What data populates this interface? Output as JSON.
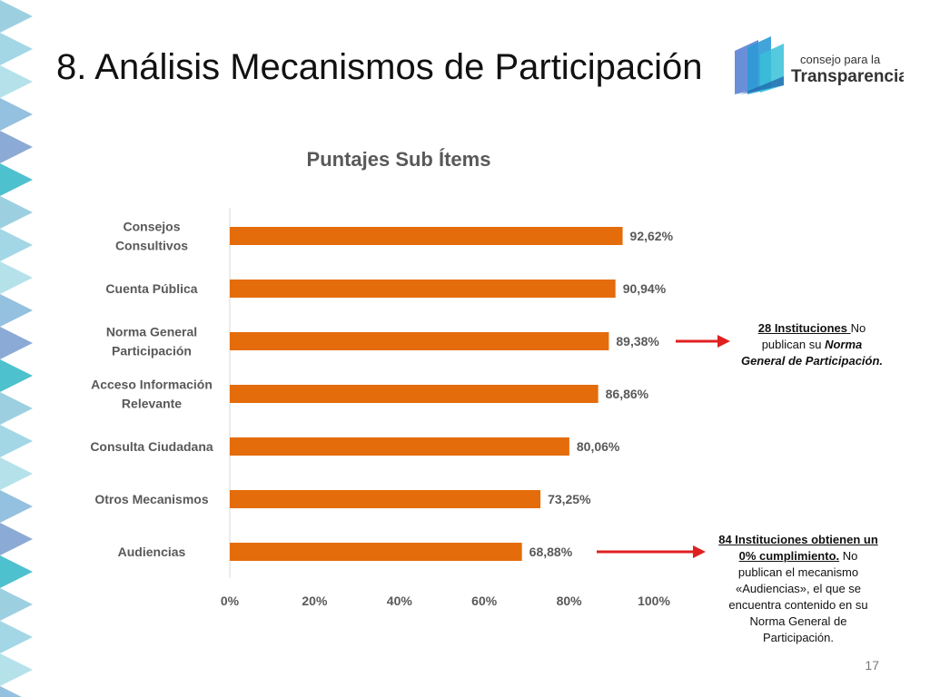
{
  "slide": {
    "title": "8. Análisis Mecanismos de Participación",
    "page_number": "17"
  },
  "logo": {
    "line1": "consejo para la",
    "line2": "Transparencia",
    "colors": [
      "#6a8fd8",
      "#2e9ad6",
      "#37c0d8",
      "#1e5fa8"
    ]
  },
  "decoration": {
    "colors": [
      "#4aa9c9",
      "#7cc6dc",
      "#a8dde6",
      "#3b8ec4",
      "#5b86c4",
      "#2fb6c7"
    ]
  },
  "chart_data": {
    "type": "bar",
    "orientation": "horizontal",
    "title": "Puntajes Sub Ítems",
    "categories": [
      "Consejos Consultivos",
      "Cuenta Pública",
      "Norma General Participación",
      "Acceso Información Relevante",
      "Consulta Ciudadana",
      "Otros Mecanismos",
      "Audiencias"
    ],
    "category_lines": [
      [
        "Consejos",
        "Consultivos"
      ],
      [
        "Cuenta Pública"
      ],
      [
        "Norma General",
        "Participación"
      ],
      [
        "Acceso Información",
        "Relevante"
      ],
      [
        "Consulta Ciudadana"
      ],
      [
        "Otros Mecanismos"
      ],
      [
        "Audiencias"
      ]
    ],
    "values": [
      92.62,
      90.94,
      89.38,
      86.86,
      80.06,
      73.25,
      68.88
    ],
    "value_labels": [
      "92,62%",
      "90,94%",
      "89,38%",
      "86,86%",
      "80,06%",
      "73,25%",
      "68,88%"
    ],
    "xlim": [
      0,
      100
    ],
    "xticks": [
      "0%",
      "20%",
      "40%",
      "60%",
      "80%",
      "100%"
    ],
    "bar_color": "#e46c0a",
    "grid": false,
    "legend": false
  },
  "notes": [
    {
      "line1_underlined": "28 Instituciones ",
      "line1_rest": "No",
      "line2_pre": "publican  su ",
      "line2_emph": "Norma",
      "line3_emph": "General de Participación."
    },
    {
      "line1_underlined": "84 Instituciones obtienen un",
      "line2_underlined": "0% cumplimiento.",
      "line2_rest": " No",
      "line3": "publican el mecanismo",
      "line4": "«Audiencias», el que se",
      "line5": "encuentra contenido en su",
      "line6": "Norma General de",
      "line7": "Participación."
    }
  ],
  "arrow_color": "#e02020"
}
